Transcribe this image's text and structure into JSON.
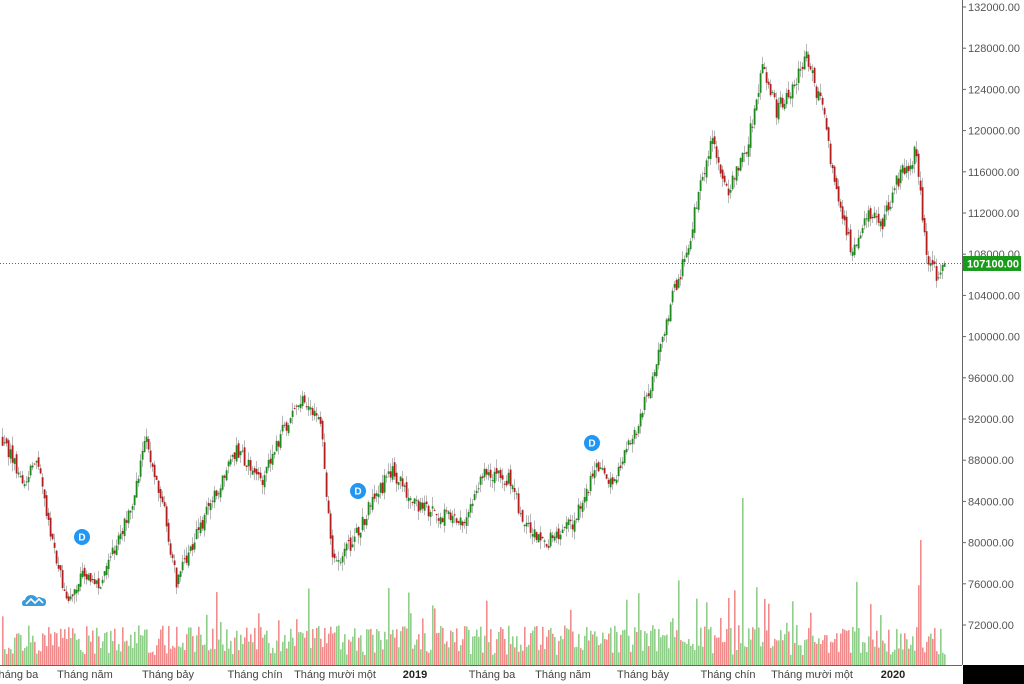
{
  "chart_data": {
    "type": "candlestick",
    "title": "",
    "ylim": [
      70000,
      132000
    ],
    "y_ticks": [
      "132000.00",
      "128000.00",
      "124000.00",
      "120000.00",
      "116000.00",
      "112000.00",
      "108000.00",
      "104000.00",
      "100000.00",
      "96000.00",
      "92000.00",
      "88000.00",
      "84000.00",
      "80000.00",
      "76000.00",
      "72000.00"
    ],
    "x_ticks": [
      "Tháng ba",
      "Tháng năm",
      "Tháng bảy",
      "Tháng chín",
      "Tháng mười một",
      "2019",
      "Tháng ba",
      "Tháng năm",
      "Tháng bảy",
      "Tháng chín",
      "Tháng mười một",
      "2020"
    ],
    "year_ticks": [
      "2019",
      "2020"
    ],
    "last_price": 107100,
    "last_price_label": "107100.00",
    "close_trend": [
      [
        0,
        90000
      ],
      [
        10,
        86000
      ],
      [
        17,
        88000
      ],
      [
        25,
        80000
      ],
      [
        32,
        74000
      ],
      [
        40,
        77000
      ],
      [
        50,
        76000
      ],
      [
        57,
        80000
      ],
      [
        65,
        84000
      ],
      [
        72,
        90000
      ],
      [
        80,
        84000
      ],
      [
        87,
        76000
      ],
      [
        95,
        80000
      ],
      [
        105,
        84000
      ],
      [
        117,
        89000
      ],
      [
        130,
        86000
      ],
      [
        140,
        91000
      ],
      [
        150,
        94000
      ],
      [
        159,
        92000
      ],
      [
        165,
        78000
      ],
      [
        175,
        80000
      ],
      [
        185,
        84000
      ],
      [
        195,
        87000
      ],
      [
        205,
        84000
      ],
      [
        215,
        83000
      ],
      [
        230,
        82000
      ],
      [
        240,
        87000
      ],
      [
        255,
        86000
      ],
      [
        260,
        82000
      ],
      [
        272,
        80000
      ],
      [
        285,
        82000
      ],
      [
        297,
        87000
      ],
      [
        305,
        86000
      ],
      [
        315,
        90000
      ],
      [
        325,
        96000
      ],
      [
        335,
        104000
      ],
      [
        342,
        108000
      ],
      [
        347,
        113000
      ],
      [
        355,
        119000
      ],
      [
        362,
        114000
      ],
      [
        372,
        118000
      ],
      [
        380,
        126000
      ],
      [
        387,
        122000
      ],
      [
        395,
        124000
      ],
      [
        402,
        127000
      ],
      [
        410,
        122000
      ],
      [
        417,
        114000
      ],
      [
        425,
        108000
      ],
      [
        432,
        112000
      ],
      [
        440,
        111000
      ],
      [
        447,
        115000
      ],
      [
        457,
        118000
      ],
      [
        462,
        108000
      ],
      [
        467,
        106000
      ],
      [
        471,
        107100
      ]
    ],
    "up_color": "#1e8a1e",
    "down_color": "#b21d1d",
    "volume_up_color": "#8fcf8a",
    "volume_down_color": "#f28b8b",
    "dividend_markers": [
      {
        "label": "D",
        "bar": 40
      },
      {
        "label": "D",
        "bar": 178
      },
      {
        "label": "D",
        "bar": 295
      }
    ]
  },
  "price_label_color": "#1a9a1a",
  "logo": "tradingview-cloud-logo"
}
